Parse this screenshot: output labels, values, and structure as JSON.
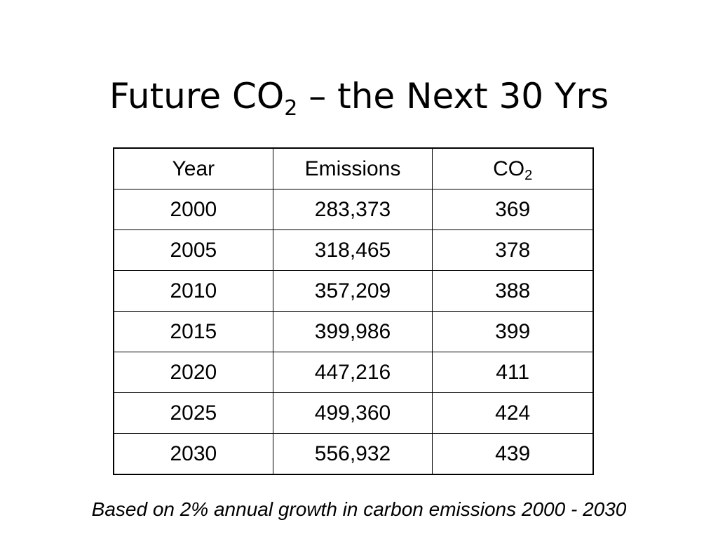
{
  "slide": {
    "title": {
      "before": "Future CO",
      "subscript": "2",
      "after": " – the Next 30 Yrs"
    }
  },
  "table": {
    "headers": {
      "year": "Year",
      "emissions": "Emissions",
      "co2": "CO",
      "co2_subscript": "2"
    },
    "rows": [
      {
        "year": "2000",
        "emissions": "283,373",
        "co2": "369"
      },
      {
        "year": "2005",
        "emissions": "318,465",
        "co2": "378"
      },
      {
        "year": "2010",
        "emissions": "357,209",
        "co2": "388"
      },
      {
        "year": "2015",
        "emissions": "399,986",
        "co2": "399"
      },
      {
        "year": "2020",
        "emissions": "447,216",
        "co2": "411"
      },
      {
        "year": "2025",
        "emissions": "499,360",
        "co2": "424"
      },
      {
        "year": "2030",
        "emissions": "556,932",
        "co2": "439"
      }
    ]
  },
  "footnote": "Based on 2% annual growth in carbon emissions 2000 - 2030"
}
